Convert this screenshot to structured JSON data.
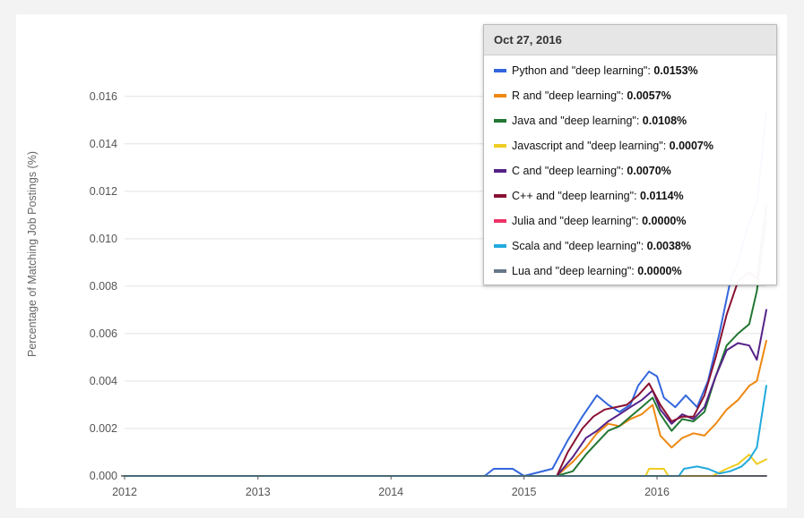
{
  "chart_data": {
    "type": "line",
    "title": "",
    "xlabel": "",
    "ylabel": "Percentage of Matching Job Postings (%)",
    "ylim": [
      0,
      0.0175
    ],
    "xlim": [
      "2012-01-01",
      "2016-10-27"
    ],
    "x_ticks": [
      "2012",
      "2013",
      "2014",
      "2015",
      "2016"
    ],
    "y_ticks": [
      "0.000",
      "0.002",
      "0.004",
      "0.006",
      "0.008",
      "0.010",
      "0.012",
      "0.014",
      "0.016"
    ],
    "grid": "horizontal",
    "series": [
      {
        "name": "Python and \"deep learning\"",
        "color": "#3366dd",
        "points": [
          [
            "2012-01-01",
            0
          ],
          [
            "2014-09-15",
            0
          ],
          [
            "2014-10-10",
            0.0003
          ],
          [
            "2014-12-01",
            0.0003
          ],
          [
            "2015-01-01",
            0
          ],
          [
            "2015-03-20",
            0.0003
          ],
          [
            "2015-05-01",
            0.0015
          ],
          [
            "2015-06-10",
            0.0025
          ],
          [
            "2015-07-20",
            0.0034
          ],
          [
            "2015-08-20",
            0.003
          ],
          [
            "2015-09-20",
            0.0027
          ],
          [
            "2015-10-20",
            0.003
          ],
          [
            "2015-11-10",
            0.0038
          ],
          [
            "2015-12-10",
            0.0044
          ],
          [
            "2016-01-01",
            0.0042
          ],
          [
            "2016-01-20",
            0.0033
          ],
          [
            "2016-02-20",
            0.0029
          ],
          [
            "2016-03-20",
            0.0034
          ],
          [
            "2016-04-20",
            0.0029
          ],
          [
            "2016-05-20",
            0.004
          ],
          [
            "2016-06-20",
            0.006
          ],
          [
            "2016-07-20",
            0.0082
          ],
          [
            "2016-08-10",
            0.009
          ],
          [
            "2016-09-05",
            0.0105
          ],
          [
            "2016-10-01",
            0.0115
          ],
          [
            "2016-10-27",
            0.0153
          ]
        ]
      },
      {
        "name": "R and \"deep learning\"",
        "color": "#ee8811",
        "points": [
          [
            "2012-01-01",
            0
          ],
          [
            "2015-04-01",
            0
          ],
          [
            "2015-05-15",
            0.0006
          ],
          [
            "2015-06-20",
            0.0012
          ],
          [
            "2015-07-20",
            0.0018
          ],
          [
            "2015-08-20",
            0.0022
          ],
          [
            "2015-09-20",
            0.0021
          ],
          [
            "2015-10-20",
            0.0024
          ],
          [
            "2015-11-20",
            0.0026
          ],
          [
            "2015-12-20",
            0.003
          ],
          [
            "2016-01-10",
            0.0017
          ],
          [
            "2016-02-10",
            0.0012
          ],
          [
            "2016-03-10",
            0.0016
          ],
          [
            "2016-04-10",
            0.0018
          ],
          [
            "2016-05-10",
            0.0017
          ],
          [
            "2016-06-10",
            0.0022
          ],
          [
            "2016-07-10",
            0.0028
          ],
          [
            "2016-08-10",
            0.0032
          ],
          [
            "2016-09-10",
            0.0038
          ],
          [
            "2016-10-01",
            0.004
          ],
          [
            "2016-10-27",
            0.0057
          ]
        ]
      },
      {
        "name": "Java and \"deep learning\"",
        "color": "#227733",
        "points": [
          [
            "2012-01-01",
            0
          ],
          [
            "2015-04-01",
            0
          ],
          [
            "2015-05-15",
            0.0002
          ],
          [
            "2015-06-20",
            0.0009
          ],
          [
            "2015-07-20",
            0.0014
          ],
          [
            "2015-08-20",
            0.0019
          ],
          [
            "2015-09-20",
            0.0021
          ],
          [
            "2015-10-20",
            0.0025
          ],
          [
            "2015-11-20",
            0.0029
          ],
          [
            "2015-12-20",
            0.0033
          ],
          [
            "2016-01-10",
            0.0026
          ],
          [
            "2016-02-10",
            0.0019
          ],
          [
            "2016-03-10",
            0.0024
          ],
          [
            "2016-04-10",
            0.0023
          ],
          [
            "2016-05-10",
            0.0027
          ],
          [
            "2016-06-10",
            0.0042
          ],
          [
            "2016-07-10",
            0.0055
          ],
          [
            "2016-08-10",
            0.006
          ],
          [
            "2016-09-10",
            0.0064
          ],
          [
            "2016-10-01",
            0.0078
          ],
          [
            "2016-10-27",
            0.0108
          ]
        ]
      },
      {
        "name": "Javascript and \"deep learning\"",
        "color": "#eecc22",
        "points": [
          [
            "2012-01-01",
            0
          ],
          [
            "2015-12-01",
            0
          ],
          [
            "2015-12-10",
            0.0003
          ],
          [
            "2016-01-20",
            0.0003
          ],
          [
            "2016-02-01",
            0
          ],
          [
            "2016-06-01",
            0
          ],
          [
            "2016-07-10",
            0.0003
          ],
          [
            "2016-08-10",
            0.0005
          ],
          [
            "2016-09-10",
            0.0009
          ],
          [
            "2016-10-01",
            0.0005
          ],
          [
            "2016-10-27",
            0.0007
          ]
        ]
      },
      {
        "name": "C and \"deep learning\"",
        "color": "#552288",
        "points": [
          [
            "2012-01-01",
            0
          ],
          [
            "2015-04-01",
            0
          ],
          [
            "2015-05-15",
            0.0008
          ],
          [
            "2015-06-20",
            0.0016
          ],
          [
            "2015-07-20",
            0.0019
          ],
          [
            "2015-08-20",
            0.0023
          ],
          [
            "2015-09-20",
            0.0026
          ],
          [
            "2015-10-20",
            0.0029
          ],
          [
            "2015-11-20",
            0.0032
          ],
          [
            "2015-12-20",
            0.0036
          ],
          [
            "2016-01-10",
            0.0028
          ],
          [
            "2016-02-10",
            0.0022
          ],
          [
            "2016-03-10",
            0.0026
          ],
          [
            "2016-04-10",
            0.0024
          ],
          [
            "2016-05-10",
            0.0029
          ],
          [
            "2016-06-10",
            0.0042
          ],
          [
            "2016-07-10",
            0.0053
          ],
          [
            "2016-08-10",
            0.0056
          ],
          [
            "2016-09-10",
            0.0055
          ],
          [
            "2016-10-01",
            0.0049
          ],
          [
            "2016-10-27",
            0.007
          ]
        ]
      },
      {
        "name": "C++ and \"deep learning\"",
        "color": "#881133",
        "points": [
          [
            "2012-01-01",
            0
          ],
          [
            "2015-04-01",
            0
          ],
          [
            "2015-05-01",
            0.001
          ],
          [
            "2015-06-10",
            0.002
          ],
          [
            "2015-07-10",
            0.0025
          ],
          [
            "2015-08-10",
            0.0028
          ],
          [
            "2015-09-10",
            0.0029
          ],
          [
            "2015-10-10",
            0.003
          ],
          [
            "2015-11-10",
            0.0034
          ],
          [
            "2015-12-10",
            0.0039
          ],
          [
            "2016-01-10",
            0.003
          ],
          [
            "2016-02-10",
            0.0023
          ],
          [
            "2016-03-10",
            0.0025
          ],
          [
            "2016-04-10",
            0.0025
          ],
          [
            "2016-05-10",
            0.0034
          ],
          [
            "2016-06-10",
            0.005
          ],
          [
            "2016-07-10",
            0.0068
          ],
          [
            "2016-08-10",
            0.0082
          ],
          [
            "2016-09-10",
            0.0086
          ],
          [
            "2016-10-01",
            0.0083
          ],
          [
            "2016-10-27",
            0.0114
          ]
        ]
      },
      {
        "name": "Julia and \"deep learning\"",
        "color": "#ee3366",
        "points": [
          [
            "2012-01-01",
            0
          ],
          [
            "2016-10-27",
            0
          ]
        ]
      },
      {
        "name": "Scala and \"deep learning\"",
        "color": "#22aadd",
        "points": [
          [
            "2012-01-01",
            0
          ],
          [
            "2016-03-01",
            0
          ],
          [
            "2016-03-15",
            0.0003
          ],
          [
            "2016-04-20",
            0.0004
          ],
          [
            "2016-05-20",
            0.0003
          ],
          [
            "2016-06-20",
            0.0001
          ],
          [
            "2016-07-20",
            0.0002
          ],
          [
            "2016-08-20",
            0.0004
          ],
          [
            "2016-09-10",
            0.0007
          ],
          [
            "2016-10-01",
            0.0012
          ],
          [
            "2016-10-27",
            0.0038
          ]
        ]
      },
      {
        "name": "Lua and \"deep learning\"",
        "color": "#667788",
        "points": [
          [
            "2012-01-01",
            0
          ],
          [
            "2016-10-27",
            0
          ]
        ]
      }
    ]
  },
  "tooltip": {
    "date": "Oct 27, 2016",
    "rows": [
      {
        "label": "Python and \"deep learning\"",
        "sep": ": ",
        "value": "0.0153%",
        "color": "#3366dd"
      },
      {
        "label": "R and \"deep learning\"",
        "sep": ": ",
        "value": "0.0057%",
        "color": "#ee8811"
      },
      {
        "label": "Java and \"deep learning\"",
        "sep": ": ",
        "value": "0.0108%",
        "color": "#227733"
      },
      {
        "label": "Javascript and \"deep learning\"",
        "sep": ": ",
        "value": "0.0007%",
        "color": "#eecc22"
      },
      {
        "label": "C and \"deep learning\"",
        "sep": ": ",
        "value": "0.0070%",
        "color": "#552288"
      },
      {
        "label": "C++ and \"deep learning\"",
        "sep": ": ",
        "value": "0.0114%",
        "color": "#881133"
      },
      {
        "label": "Julia and \"deep learning\"",
        "sep": ": ",
        "value": "0.0000%",
        "color": "#ee3366"
      },
      {
        "label": "Scala and \"deep learning\"",
        "sep": ": ",
        "value": "0.0038%",
        "color": "#22aadd"
      },
      {
        "label": "Lua and \"deep learning\"",
        "sep": ": ",
        "value": "0.0000%",
        "color": "#667788"
      }
    ]
  }
}
